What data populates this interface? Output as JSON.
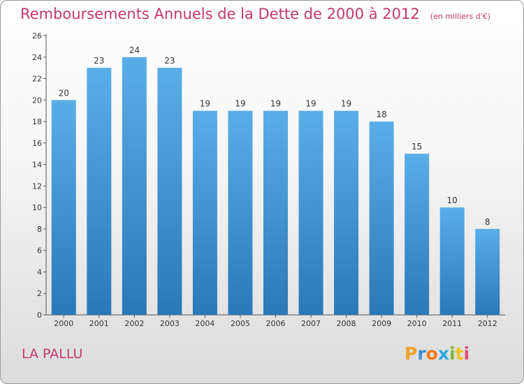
{
  "title": "Remboursements Annuels de la Dette de 2000 à 2012",
  "subtitle": "(en milliers d'€)",
  "commune": "LA PALLU",
  "logo_text": "Proxiti",
  "colors": {
    "title": "#c2386f",
    "bar_top": "#5aaee8",
    "bar_bottom": "#2a78b8",
    "axis": "#555555"
  },
  "chart_data": {
    "type": "bar",
    "title": "Remboursements Annuels de la Dette de 2000 à 2012",
    "categories": [
      "2000",
      "2001",
      "2002",
      "2003",
      "2004",
      "2005",
      "2006",
      "2007",
      "2008",
      "2009",
      "2010",
      "2011",
      "2012"
    ],
    "values": [
      20,
      23,
      24,
      23,
      19,
      19,
      19,
      19,
      19,
      18,
      15,
      10,
      8
    ],
    "data_labels": [
      "20",
      "23",
      "24",
      "23",
      "19",
      "19",
      "19",
      "19",
      "19",
      "18",
      "15",
      "10",
      "8"
    ],
    "ylim": [
      0,
      26
    ],
    "yticks": [
      0,
      2,
      4,
      6,
      8,
      10,
      12,
      14,
      16,
      18,
      20,
      22,
      24,
      26
    ],
    "ytick_labels": [
      "0",
      "2",
      "4",
      "6",
      "8",
      "10",
      "12",
      "14",
      "16",
      "18",
      "20",
      "22",
      "24",
      "26"
    ],
    "grid": false
  }
}
